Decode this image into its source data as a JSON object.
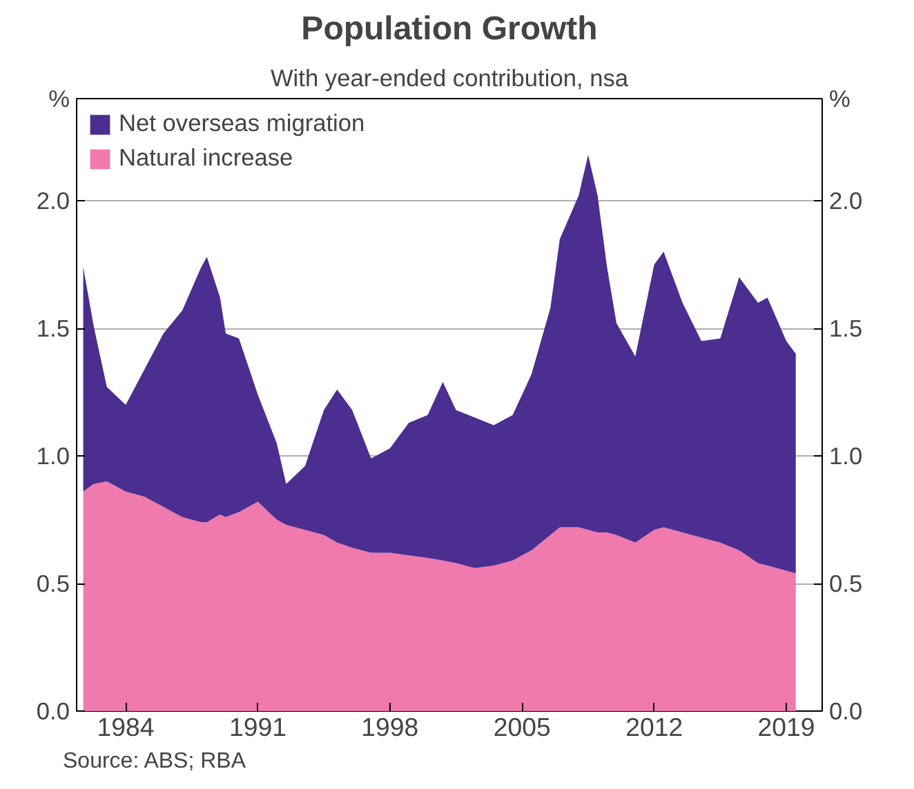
{
  "chart_data": {
    "type": "area",
    "stacked": true,
    "title": "Population Growth",
    "subtitle": "With year-ended contribution, nsa",
    "ylabel": "%",
    "y2label": "%",
    "x": [
      1981.75,
      1982.3,
      1983.0,
      1984.0,
      1985.0,
      1986.0,
      1987.0,
      1988.0,
      1988.3,
      1989.0,
      1989.3,
      1990.0,
      1991.0,
      1992.0,
      1992.5,
      1993.5,
      1994.5,
      1995.2,
      1996.0,
      1997.0,
      1998.0,
      1999.0,
      2000.0,
      2000.8,
      2001.5,
      2002.5,
      2003.5,
      2004.5,
      2005.5,
      2006.5,
      2007.0,
      2008.0,
      2008.5,
      2009.0,
      2009.5,
      2010.0,
      2011.0,
      2012.0,
      2012.5,
      2013.5,
      2014.5,
      2015.5,
      2016.5,
      2017.5,
      2018.0,
      2019.0,
      2019.5
    ],
    "series": [
      {
        "name": "Natural increase",
        "color": "#f07aad",
        "values": [
          0.86,
          0.89,
          0.9,
          0.86,
          0.84,
          0.8,
          0.76,
          0.74,
          0.74,
          0.77,
          0.76,
          0.78,
          0.82,
          0.75,
          0.73,
          0.71,
          0.69,
          0.66,
          0.64,
          0.62,
          0.62,
          0.61,
          0.6,
          0.59,
          0.58,
          0.56,
          0.57,
          0.59,
          0.63,
          0.69,
          0.72,
          0.72,
          0.71,
          0.7,
          0.7,
          0.69,
          0.66,
          0.71,
          0.72,
          0.7,
          0.68,
          0.66,
          0.63,
          0.58,
          0.57,
          0.55,
          0.54
        ]
      },
      {
        "name": "Net overseas migration",
        "color": "#4b2e8f",
        "values": [
          0.88,
          0.62,
          0.37,
          0.34,
          0.5,
          0.68,
          0.81,
          1.0,
          1.04,
          0.85,
          0.72,
          0.68,
          0.42,
          0.3,
          0.16,
          0.25,
          0.49,
          0.6,
          0.54,
          0.37,
          0.41,
          0.52,
          0.56,
          0.7,
          0.6,
          0.59,
          0.55,
          0.57,
          0.69,
          0.89,
          1.13,
          1.3,
          1.47,
          1.32,
          1.04,
          0.83,
          0.73,
          1.04,
          1.08,
          0.9,
          0.77,
          0.8,
          1.07,
          1.02,
          1.05,
          0.9,
          0.86
        ]
      }
    ],
    "xlim": [
      1981.4,
      2020.9
    ],
    "xticks": [
      1984,
      1991,
      1998,
      2005,
      2012,
      2019
    ],
    "ylim": [
      0,
      2.4
    ],
    "yticks": [
      {
        "value": 0,
        "label": "0.0"
      },
      0.5,
      {
        "value": 1,
        "label": "1.0"
      },
      1.5,
      {
        "value": 2,
        "label": "2.0"
      }
    ],
    "y2lim": [
      0,
      2.4
    ],
    "y2ticks": [
      {
        "value": 0,
        "label": "0.0"
      },
      0.5,
      {
        "value": 1,
        "label": "1.0"
      },
      1.5,
      {
        "value": 2,
        "label": "2.0"
      }
    ],
    "grid": "y",
    "legend": "top left",
    "annotations": [
      "Source: ABS; RBA"
    ]
  }
}
